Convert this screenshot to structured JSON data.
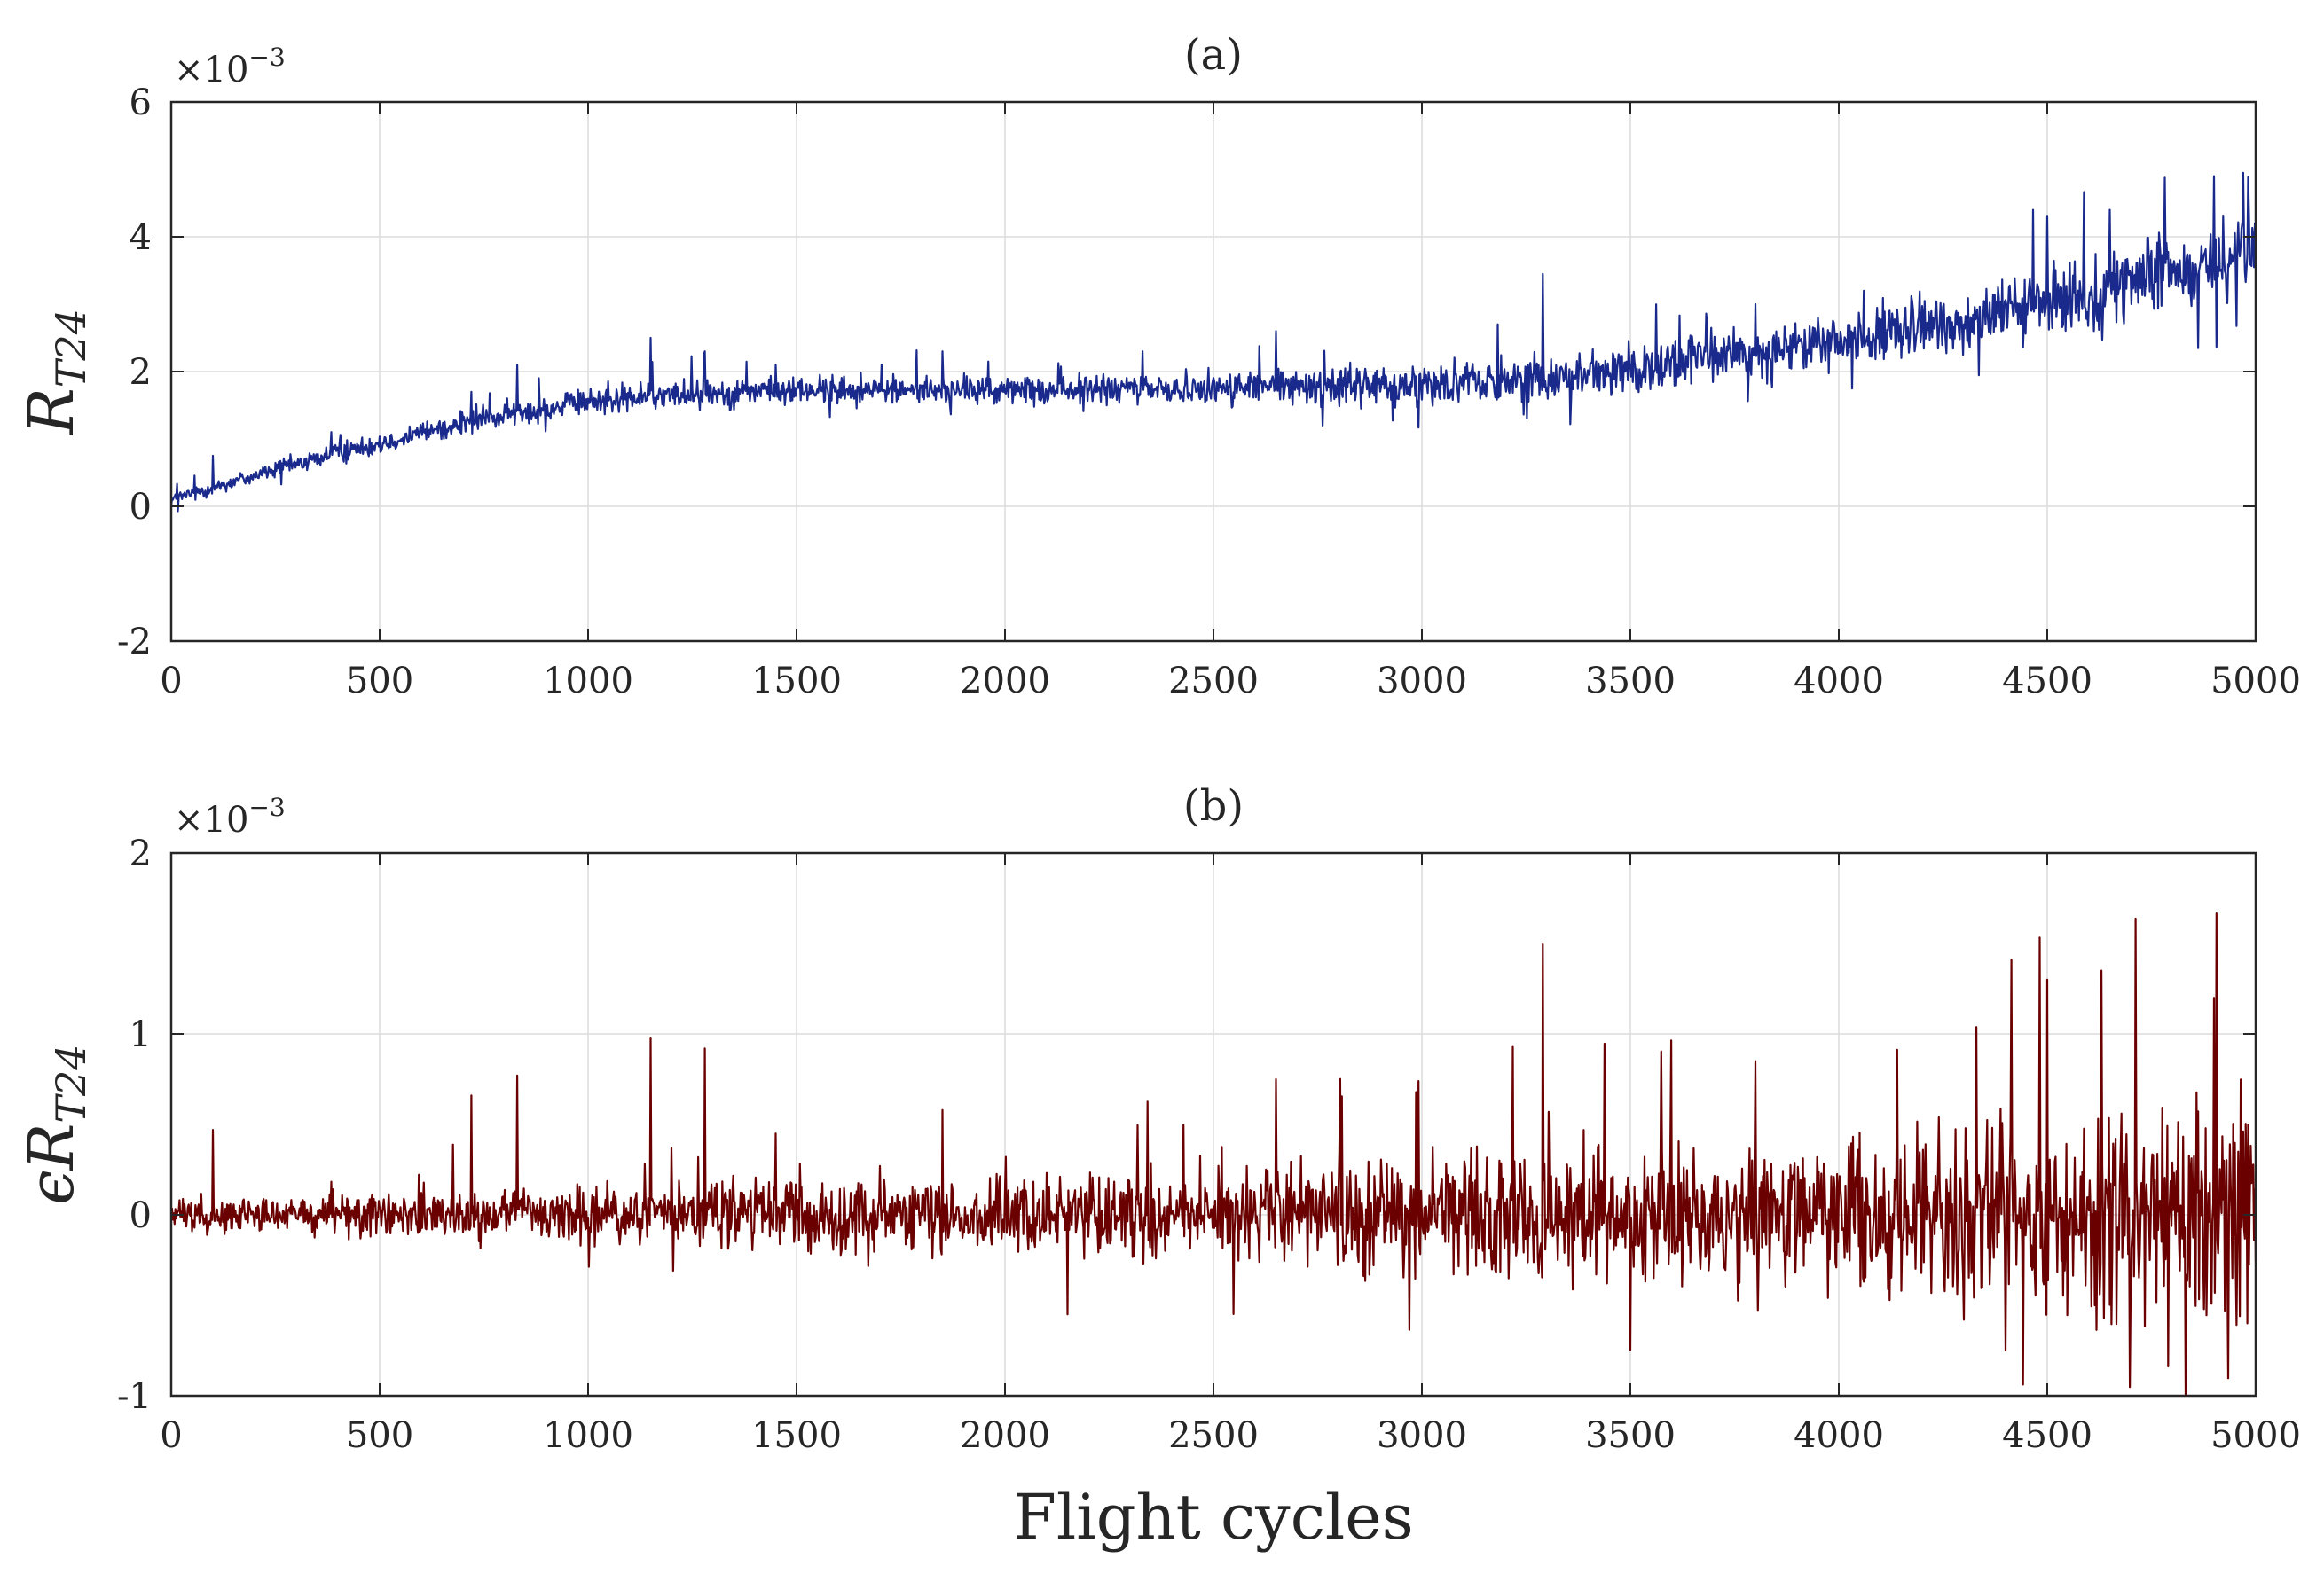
{
  "xlabel": "Flight cycles",
  "chart_data": [
    {
      "type": "line",
      "title": "(a)",
      "ylabel_main": "R",
      "ylabel_sub": "T24",
      "multiplier_base": "×10",
      "multiplier_exp": "−3",
      "xlim": [
        0,
        5000
      ],
      "ylim": [
        -2,
        6
      ],
      "xticks": [
        0,
        500,
        1000,
        1500,
        2000,
        2500,
        3000,
        3500,
        4000,
        4500,
        5000
      ],
      "xtick_labels": [
        "0",
        "500",
        "1000",
        "1500",
        "2000",
        "2500",
        "3000",
        "3500",
        "4000",
        "4500",
        "5000"
      ],
      "yticks": [
        -2,
        0,
        2,
        4,
        6
      ],
      "ytick_labels": [
        "-2",
        "0",
        "2",
        "4",
        "6"
      ],
      "grid": true,
      "color": "#1a2a8c",
      "series": [
        {
          "name": "R_T24",
          "trend_x": [
            0,
            250,
            500,
            750,
            1000,
            1250,
            1500,
            1750,
            2000,
            2250,
            2500,
            2750,
            3000,
            3250,
            3500,
            3750,
            4000,
            4250,
            4500,
            4750,
            5000
          ],
          "trend_y": [
            0.1,
            0.55,
            0.95,
            1.3,
            1.55,
            1.68,
            1.72,
            1.73,
            1.72,
            1.73,
            1.75,
            1.78,
            1.82,
            1.9,
            2.05,
            2.25,
            2.45,
            2.7,
            3.0,
            3.4,
            3.8
          ],
          "noise_x": [
            0,
            500,
            1000,
            1500,
            2000,
            2500,
            3000,
            3500,
            4000,
            4500,
            5000
          ],
          "noise_amp": [
            0.05,
            0.08,
            0.1,
            0.1,
            0.1,
            0.12,
            0.15,
            0.18,
            0.2,
            0.25,
            0.3
          ],
          "spikes_x": [
            100,
            720,
            830,
            1150,
            1280,
            1450,
            1850,
            2330,
            2650,
            3290,
            3800,
            4060,
            4500,
            4650,
            4900,
            4970
          ],
          "spikes_y": [
            0.75,
            1.7,
            2.1,
            2.5,
            2.3,
            2.1,
            2.3,
            2.3,
            2.6,
            3.45,
            3.0,
            3.2,
            4.3,
            4.4,
            4.9,
            4.95
          ]
        }
      ]
    },
    {
      "type": "line",
      "title": "(b)",
      "ylabel_main": "ϵR",
      "ylabel_sub": "T24",
      "multiplier_base": "×10",
      "multiplier_exp": "−3",
      "xlim": [
        0,
        5000
      ],
      "ylim": [
        -1,
        2
      ],
      "xticks": [
        0,
        500,
        1000,
        1500,
        2000,
        2500,
        3000,
        3500,
        4000,
        4500,
        5000
      ],
      "xtick_labels": [
        "0",
        "500",
        "1000",
        "1500",
        "2000",
        "2500",
        "3000",
        "3500",
        "4000",
        "4500",
        "5000"
      ],
      "yticks": [
        -1,
        0,
        1,
        2
      ],
      "ytick_labels": [
        "-1",
        "0",
        "1",
        "2"
      ],
      "grid": true,
      "color": "#6b0000",
      "series": [
        {
          "name": "eps_R_T24",
          "trend_x": [
            0,
            5000
          ],
          "trend_y": [
            0,
            0
          ],
          "noise_x": [
            0,
            500,
            1000,
            1500,
            2000,
            2500,
            3000,
            3500,
            4000,
            4500,
            5000
          ],
          "noise_amp": [
            0.04,
            0.06,
            0.08,
            0.09,
            0.1,
            0.12,
            0.15,
            0.18,
            0.2,
            0.26,
            0.3
          ],
          "spikes_x": [
            100,
            720,
            830,
            1150,
            1280,
            1450,
            1850,
            2150,
            2650,
            3290,
            3800,
            4400,
            4500,
            4630,
            4900,
            4980
          ],
          "spikes_y": [
            0.47,
            0.66,
            0.77,
            0.98,
            0.92,
            0.45,
            0.58,
            -0.55,
            0.75,
            1.5,
            0.85,
            -0.75,
            1.3,
            1.35,
            1.2,
            -0.6
          ]
        }
      ]
    }
  ]
}
